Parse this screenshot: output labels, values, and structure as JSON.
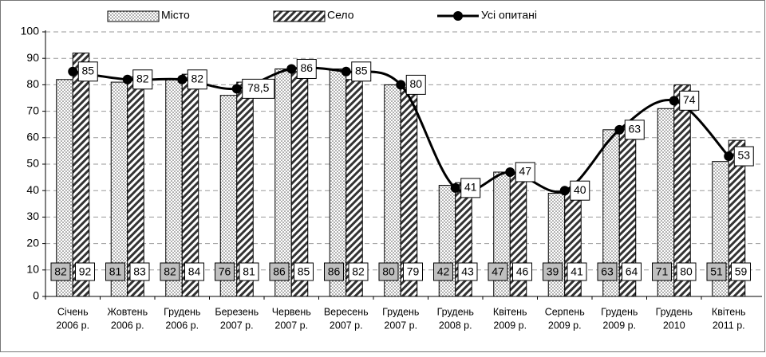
{
  "chart_data": {
    "type": "bar-line",
    "categories": [
      [
        "Січень",
        "2006 р."
      ],
      [
        "Жовтень",
        "2006 р."
      ],
      [
        "Грудень",
        "2006 р."
      ],
      [
        "Березень",
        "2007 р."
      ],
      [
        "Червень",
        "2007 р."
      ],
      [
        "Вересень",
        "2007 р."
      ],
      [
        "Грудень",
        "2007 р."
      ],
      [
        "Грудень",
        "2008 р."
      ],
      [
        "Квітень",
        "2009 р."
      ],
      [
        "Серпень",
        "2009 р."
      ],
      [
        "Грудень",
        "2009 р."
      ],
      [
        "Грудень",
        "2010"
      ],
      [
        "Квітень",
        "2011 р."
      ]
    ],
    "series": [
      {
        "name": "Місто",
        "type": "bar",
        "pattern": "dots",
        "label_fill": "#bfbfbf",
        "values": [
          82,
          81,
          82,
          76,
          86,
          86,
          80,
          42,
          47,
          39,
          63,
          71,
          51
        ]
      },
      {
        "name": "Село",
        "type": "bar",
        "pattern": "hatch",
        "label_fill": "#ffffff",
        "values": [
          92,
          83,
          84,
          81,
          85,
          82,
          79,
          43,
          46,
          41,
          64,
          80,
          59
        ]
      },
      {
        "name": "Усі опитані",
        "type": "line",
        "color": "#000000",
        "values": [
          85,
          82,
          82,
          78.5,
          86,
          85,
          80,
          41,
          47,
          40,
          63,
          74,
          53
        ],
        "value_labels": [
          "85",
          "82",
          "82",
          "78,5",
          "86",
          "85",
          "80",
          "41",
          "47",
          "40",
          "63",
          "74",
          "53"
        ]
      }
    ],
    "ylim": [
      0,
      100
    ],
    "yticks": [
      0,
      10,
      20,
      30,
      40,
      50,
      60,
      70,
      80,
      90,
      100
    ],
    "grid": true,
    "legend": "top"
  }
}
